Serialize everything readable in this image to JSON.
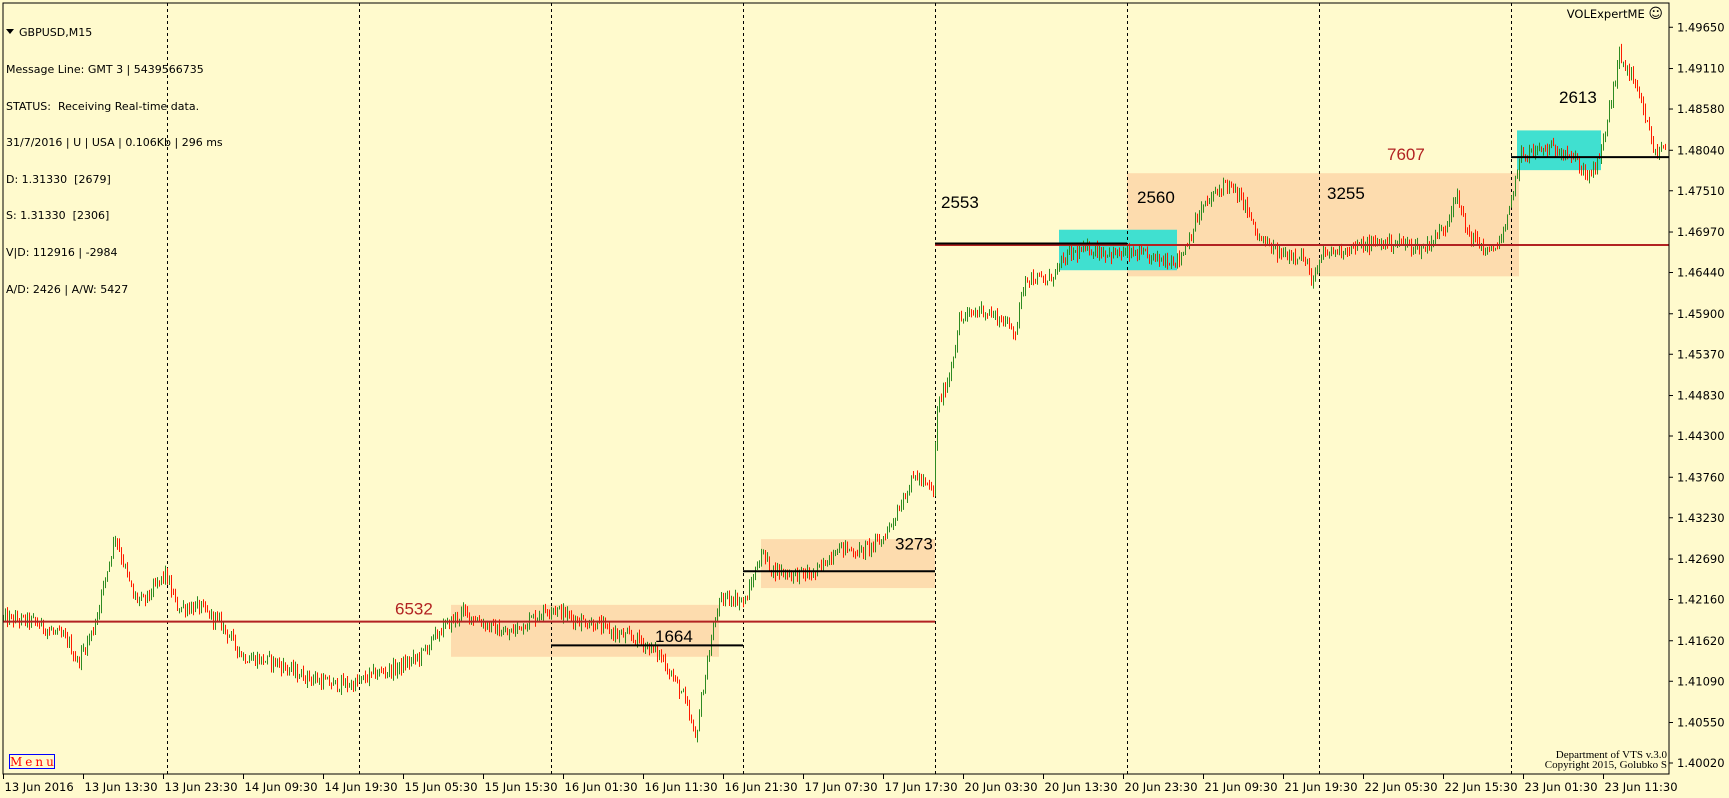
{
  "header": {
    "symbol": "GBPUSD,M15",
    "lines": [
      "Message Line: GMT 3 | 5439566735",
      "STATUS:  Receiving Real-time data.",
      "31/7/2016 | U | USA | 0.106Kb | 296 ms",
      "D: 1.31330  [2679]",
      "S: 1.31330  [2306]",
      "V|D: 112916 | -2984",
      "A/D: 2426 | A/W: 5427"
    ],
    "expert": "VOLExpertME",
    "expert_icon": "smiley-icon"
  },
  "menu_label": "Menu",
  "copyright": [
    "Department of VTS  v.3.0",
    "Copyright 2015, Golubko S"
  ],
  "colors": {
    "background": "#FFFACD",
    "bull": "#2E8B22",
    "bear": "#FF1A00",
    "red_line": "#B22222",
    "orange_zone": "#FDDCAE",
    "cyan_zone": "#40E0D0"
  },
  "chart_data": {
    "type": "ohlc",
    "symbol": "GBPUSD",
    "timeframe": "M15",
    "y_ticks": [
      "1.49650",
      "1.49110",
      "1.48580",
      "1.48040",
      "1.47510",
      "1.46970",
      "1.46440",
      "1.45900",
      "1.45370",
      "1.44830",
      "1.44300",
      "1.43760",
      "1.43230",
      "1.42690",
      "1.42160",
      "1.41620",
      "1.41090",
      "1.40550",
      "1.40020"
    ],
    "ylim": [
      1.3994,
      1.4997
    ],
    "x_ticks": [
      "13 Jun 2016",
      "13 Jun 13:30",
      "13 Jun 23:30",
      "14 Jun 09:30",
      "14 Jun 19:30",
      "15 Jun 05:30",
      "15 Jun 15:30",
      "16 Jun 01:30",
      "16 Jun 11:30",
      "16 Jun 21:30",
      "17 Jun 07:30",
      "17 Jun 17:30",
      "20 Jun 03:30",
      "20 Jun 13:30",
      "20 Jun 23:30",
      "21 Jun 09:30",
      "21 Jun 19:30",
      "22 Jun 05:30",
      "22 Jun 15:30",
      "23 Jun 01:30",
      "23 Jun 11:30"
    ],
    "day_separators": [
      "14 00:00",
      "15 00:00",
      "16 00:00",
      "17 00:00",
      "20 00:00",
      "21 00:00",
      "22 00:00",
      "23 00:00"
    ],
    "price_path": [
      [
        "13 03:45",
        1.4191
      ],
      [
        "13 07:15",
        1.4187
      ],
      [
        "13 11:30",
        1.4163
      ],
      [
        "13 12:45",
        1.4134
      ],
      [
        "13 14:45",
        1.4177
      ],
      [
        "13 17:00",
        1.4278
      ],
      [
        "13 17:30",
        1.43
      ],
      [
        "13 19:45",
        1.422
      ],
      [
        "13 21:00",
        1.4213
      ],
      [
        "13 23:45",
        1.4249
      ],
      [
        "14 01:15",
        1.4206
      ],
      [
        "14 04:00",
        1.4206
      ],
      [
        "14 06:45",
        1.4184
      ],
      [
        "14 09:30",
        1.4141
      ],
      [
        "14 13:30",
        1.4134
      ],
      [
        "14 16:15",
        1.4119
      ],
      [
        "14 20:30",
        1.4105
      ],
      [
        "14 23:15",
        1.4105
      ],
      [
        "15 02:00",
        1.4119
      ],
      [
        "15 04:45",
        1.4126
      ],
      [
        "15 07:30",
        1.4141
      ],
      [
        "15 10:15",
        1.4177
      ],
      [
        "15 13:00",
        1.4199
      ],
      [
        "15 15:45",
        1.4184
      ],
      [
        "15 18:30",
        1.417
      ],
      [
        "15 22:45",
        1.4199
      ],
      [
        "16 00:00",
        1.4206
      ],
      [
        "16 02:45",
        1.4191
      ],
      [
        "16 05:30",
        1.4184
      ],
      [
        "16 08:15",
        1.417
      ],
      [
        "16 11:00",
        1.4163
      ],
      [
        "16 13:45",
        1.4141
      ],
      [
        "16 16:30",
        1.409
      ],
      [
        "16 18:00",
        1.4033
      ],
      [
        "16 19:15",
        1.4119
      ],
      [
        "16 20:45",
        1.4206
      ],
      [
        "16 22:00",
        1.422
      ],
      [
        "17 00:15",
        1.4213
      ],
      [
        "17 02:15",
        1.4278
      ],
      [
        "17 03:30",
        1.4256
      ],
      [
        "17 06:15",
        1.4249
      ],
      [
        "17 09:00",
        1.4249
      ],
      [
        "17 11:45",
        1.4285
      ],
      [
        "17 14:30",
        1.4278
      ],
      [
        "17 17:15",
        1.4293
      ],
      [
        "17 18:45",
        1.4321
      ],
      [
        "17 20:00",
        1.435
      ],
      [
        "17 21:30",
        1.4379
      ],
      [
        "17 22:45",
        1.4365
      ],
      [
        "17 23:45",
        1.4358
      ],
      [
        "20 00:15",
        1.4466
      ],
      [
        "20 01:45",
        1.4509
      ],
      [
        "20 03:00",
        1.4581
      ],
      [
        "20 05:45",
        1.4596
      ],
      [
        "20 08:30",
        1.4581
      ],
      [
        "20 10:00",
        1.4567
      ],
      [
        "20 11:15",
        1.4639
      ],
      [
        "20 14:00",
        1.4632
      ],
      [
        "20 16:45",
        1.4668
      ],
      [
        "20 19:30",
        1.4675
      ],
      [
        "20 22:15",
        1.4668
      ],
      [
        "21 01:00",
        1.4668
      ],
      [
        "21 03:45",
        1.4661
      ],
      [
        "21 06:30",
        1.4661
      ],
      [
        "21 09:15",
        1.4726
      ],
      [
        "21 12:15",
        1.4762
      ],
      [
        "21 14:45",
        1.4733
      ],
      [
        "21 16:15",
        1.469
      ],
      [
        "21 19:00",
        1.4668
      ],
      [
        "21 21:45",
        1.4668
      ],
      [
        "21 23:15",
        1.4632
      ],
      [
        "22 00:30",
        1.4668
      ],
      [
        "22 03:15",
        1.4675
      ],
      [
        "22 07:30",
        1.4683
      ],
      [
        "22 10:15",
        1.4683
      ],
      [
        "22 13:00",
        1.4675
      ],
      [
        "22 15:45",
        1.4704
      ],
      [
        "22 17:00",
        1.4748
      ],
      [
        "22 18:30",
        1.4697
      ],
      [
        "22 21:15",
        1.4668
      ],
      [
        "22 23:15",
        1.4697
      ],
      [
        "23 00:15",
        1.4755
      ],
      [
        "23 01:15",
        1.4798
      ],
      [
        "23 04:00",
        1.4805
      ],
      [
        "23 06:45",
        1.4805
      ],
      [
        "23 09:45",
        1.4769
      ],
      [
        "23 11:00",
        1.4791
      ],
      [
        "23 12:30",
        1.487
      ],
      [
        "23 13:30",
        1.4928
      ],
      [
        "23 15:00",
        1.4899
      ],
      [
        "23 16:30",
        1.4856
      ],
      [
        "23 18:00",
        1.4798
      ],
      [
        "23 19:15",
        1.4813
      ]
    ],
    "zones": [
      {
        "from": "15 11:30",
        "to": "16 21:00",
        "top": 1.4209,
        "bottom": 1.4141,
        "color": "orange"
      },
      {
        "from": "17 02:15",
        "to": "20 00:00",
        "top": 1.4295,
        "bottom": 1.4231,
        "color": "orange"
      },
      {
        "from": "21 00:00",
        "to": "23 01:00",
        "top": 1.4774,
        "bottom": 1.4639,
        "color": "orange"
      },
      {
        "from": "20 15:30",
        "to": "21 06:15",
        "top": 1.47,
        "bottom": 1.4647,
        "color": "cyan"
      },
      {
        "from": "23 00:45",
        "to": "23 11:15",
        "top": 1.483,
        "bottom": 1.4778,
        "color": "cyan"
      }
    ],
    "levels": [
      {
        "from": "13 03:30",
        "to": "20 00:00",
        "price": 1.4187,
        "color": "red"
      },
      {
        "from": "16 00:00",
        "to": "17 00:00",
        "price": 1.4156,
        "color": "black"
      },
      {
        "from": "17 00:00",
        "to": "20 00:00",
        "price": 1.4253,
        "color": "black"
      },
      {
        "from": "20 00:00",
        "to": "23 19:45",
        "price": 1.468,
        "color": "red"
      },
      {
        "from": "20 00:00",
        "to": "21 00:00",
        "price": 1.4682,
        "color": "black"
      },
      {
        "from": "23 00:00",
        "to": "23 19:45",
        "price": 1.4795,
        "color": "black"
      }
    ],
    "labels": [
      {
        "text": "6532",
        "time": "15 04:30",
        "price": 1.4204,
        "color": "red"
      },
      {
        "text": "1664",
        "time": "16 13:00",
        "price": 1.4168,
        "color": "black"
      },
      {
        "text": "3273",
        "time": "17 19:00",
        "price": 1.4289,
        "color": "black"
      },
      {
        "text": "2553",
        "time": "20 00:45",
        "price": 1.4736,
        "color": "black"
      },
      {
        "text": "2560",
        "time": "21 01:15",
        "price": 1.4743,
        "color": "black"
      },
      {
        "text": "3255",
        "time": "22 01:00",
        "price": 1.4748,
        "color": "black"
      },
      {
        "text": "7607",
        "time": "22 08:30",
        "price": 1.4799,
        "color": "red"
      },
      {
        "text": "2613",
        "time": "23 06:00",
        "price": 1.4874,
        "color": "black"
      }
    ]
  }
}
